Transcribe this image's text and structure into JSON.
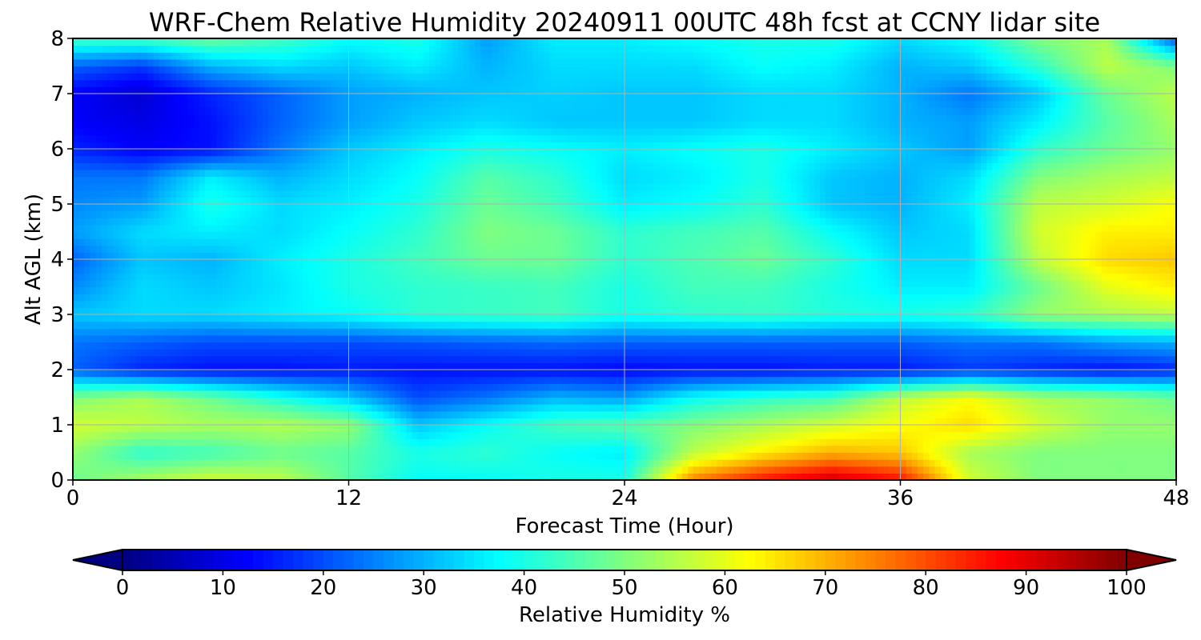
{
  "chart_data": {
    "type": "heatmap",
    "title": "WRF-Chem Relative Humidity 20240911 00UTC 48h fcst at CCNY lidar site",
    "xlabel": "Forecast Time (Hour)",
    "ylabel": "Alt AGL (km)",
    "xlim": [
      0,
      48
    ],
    "ylim": [
      0,
      8
    ],
    "x_ticks": [
      0,
      12,
      24,
      36,
      48
    ],
    "y_ticks": [
      0,
      1,
      2,
      3,
      4,
      5,
      6,
      7,
      8
    ],
    "grid": true,
    "colormap": "jet",
    "colorbar": {
      "label": "Relative Humidity %",
      "min": 0,
      "max": 100,
      "ticks": [
        0,
        10,
        20,
        30,
        40,
        50,
        60,
        70,
        80,
        90,
        100
      ],
      "extend": "both",
      "orientation": "horizontal"
    },
    "x": [
      0,
      3,
      6,
      9,
      12,
      15,
      18,
      21,
      24,
      27,
      30,
      33,
      36,
      39,
      42,
      45,
      48
    ],
    "y": [
      0,
      0.5,
      1,
      1.5,
      2,
      2.5,
      3,
      3.5,
      4,
      4.5,
      5,
      5.5,
      6,
      6.5,
      7,
      7.5,
      8
    ],
    "z": [
      [
        48,
        54,
        58,
        56,
        46,
        38,
        38,
        40,
        40,
        75,
        86,
        93,
        86,
        58,
        50,
        50,
        50
      ],
      [
        52,
        42,
        44,
        48,
        46,
        40,
        42,
        38,
        36,
        56,
        64,
        70,
        68,
        54,
        50,
        50,
        50
      ],
      [
        58,
        56,
        54,
        55,
        52,
        32,
        38,
        44,
        46,
        50,
        54,
        58,
        62,
        66,
        58,
        52,
        52
      ],
      [
        50,
        54,
        48,
        40,
        32,
        20,
        24,
        30,
        28,
        38,
        42,
        44,
        56,
        62,
        54,
        52,
        48
      ],
      [
        22,
        16,
        14,
        14,
        15,
        14,
        14,
        14,
        13,
        14,
        14,
        15,
        15,
        18,
        16,
        14,
        16
      ],
      [
        24,
        22,
        20,
        20,
        20,
        21,
        22,
        23,
        22,
        22,
        22,
        22,
        22,
        24,
        24,
        28,
        30
      ],
      [
        32,
        34,
        34,
        36,
        38,
        42,
        43,
        44,
        40,
        42,
        43,
        41,
        40,
        42,
        52,
        54,
        56
      ],
      [
        26,
        34,
        32,
        35,
        40,
        42,
        43,
        44,
        40,
        44,
        44,
        40,
        36,
        36,
        48,
        60,
        64
      ],
      [
        22,
        32,
        30,
        36,
        40,
        44,
        48,
        48,
        42,
        45,
        48,
        42,
        34,
        34,
        56,
        66,
        68
      ],
      [
        28,
        34,
        36,
        34,
        38,
        42,
        50,
        48,
        42,
        44,
        46,
        38,
        32,
        34,
        58,
        64,
        64
      ],
      [
        26,
        28,
        40,
        34,
        36,
        40,
        48,
        44,
        36,
        38,
        42,
        32,
        30,
        36,
        56,
        58,
        62
      ],
      [
        24,
        24,
        36,
        30,
        34,
        38,
        46,
        42,
        34,
        36,
        40,
        32,
        30,
        34,
        50,
        54,
        56
      ],
      [
        16,
        12,
        14,
        24,
        32,
        36,
        40,
        38,
        36,
        38,
        40,
        36,
        32,
        28,
        42,
        48,
        52
      ],
      [
        12,
        10,
        14,
        22,
        28,
        32,
        34,
        32,
        32,
        32,
        34,
        34,
        30,
        28,
        36,
        46,
        54
      ],
      [
        12,
        8,
        16,
        22,
        28,
        30,
        32,
        33,
        32,
        32,
        34,
        34,
        30,
        24,
        32,
        48,
        56
      ],
      [
        22,
        18,
        30,
        34,
        32,
        36,
        30,
        34,
        34,
        34,
        38,
        36,
        30,
        32,
        42,
        56,
        50
      ],
      [
        44,
        44,
        48,
        44,
        38,
        40,
        28,
        36,
        36,
        38,
        40,
        40,
        34,
        38,
        50,
        54,
        20
      ]
    ]
  }
}
